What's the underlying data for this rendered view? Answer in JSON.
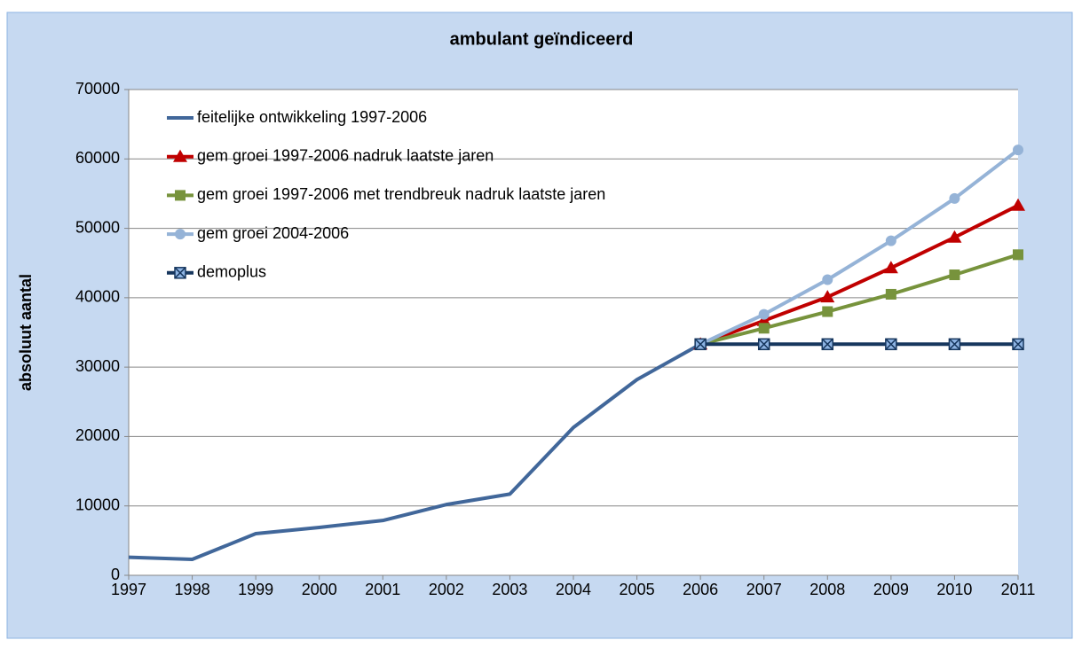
{
  "chart_data": {
    "type": "line",
    "title": "ambulant geïndiceerd",
    "y_label": "absoluut aantal",
    "categories": [
      "1997",
      "1998",
      "1999",
      "2000",
      "2001",
      "2002",
      "2003",
      "2004",
      "2005",
      "2006",
      "2007",
      "2008",
      "2009",
      "2010",
      "2011"
    ],
    "series": [
      {
        "name": "feitelijke ontwikkeling 1997-2006",
        "color": "#41679a",
        "marker": "none",
        "values": [
          2600,
          2300,
          6000,
          6900,
          7900,
          10200,
          11700,
          21300,
          28200,
          33300,
          null,
          null,
          null,
          null,
          null
        ]
      },
      {
        "name": "gem groei 1997-2006 nadruk laatste jaren",
        "color": "#c00000",
        "marker": "triangle",
        "values": [
          null,
          null,
          null,
          null,
          null,
          null,
          null,
          null,
          null,
          33300,
          36700,
          40100,
          44300,
          48700,
          53300
        ]
      },
      {
        "name": "gem groei 1997-2006 met trendbreuk nadruk laatste jaren",
        "color": "#77933c",
        "marker": "square",
        "values": [
          null,
          null,
          null,
          null,
          null,
          null,
          null,
          null,
          null,
          33300,
          35600,
          38000,
          40500,
          43300,
          46200
        ]
      },
      {
        "name": "gem groei 2004-2006",
        "color": "#95b3d7",
        "marker": "circle",
        "values": [
          null,
          null,
          null,
          null,
          null,
          null,
          null,
          null,
          null,
          33300,
          37600,
          42600,
          48200,
          54300,
          61300
        ]
      },
      {
        "name": "demoplus",
        "color": "#17375e",
        "marker": "xsquare",
        "values": [
          null,
          null,
          null,
          null,
          null,
          null,
          null,
          null,
          null,
          33300,
          33300,
          33300,
          33300,
          33300,
          33300
        ]
      }
    ],
    "ylim": [
      0,
      70000
    ],
    "yticks": [
      0,
      10000,
      20000,
      30000,
      40000,
      50000,
      60000,
      70000
    ],
    "grid": true,
    "legend": "upper left"
  }
}
